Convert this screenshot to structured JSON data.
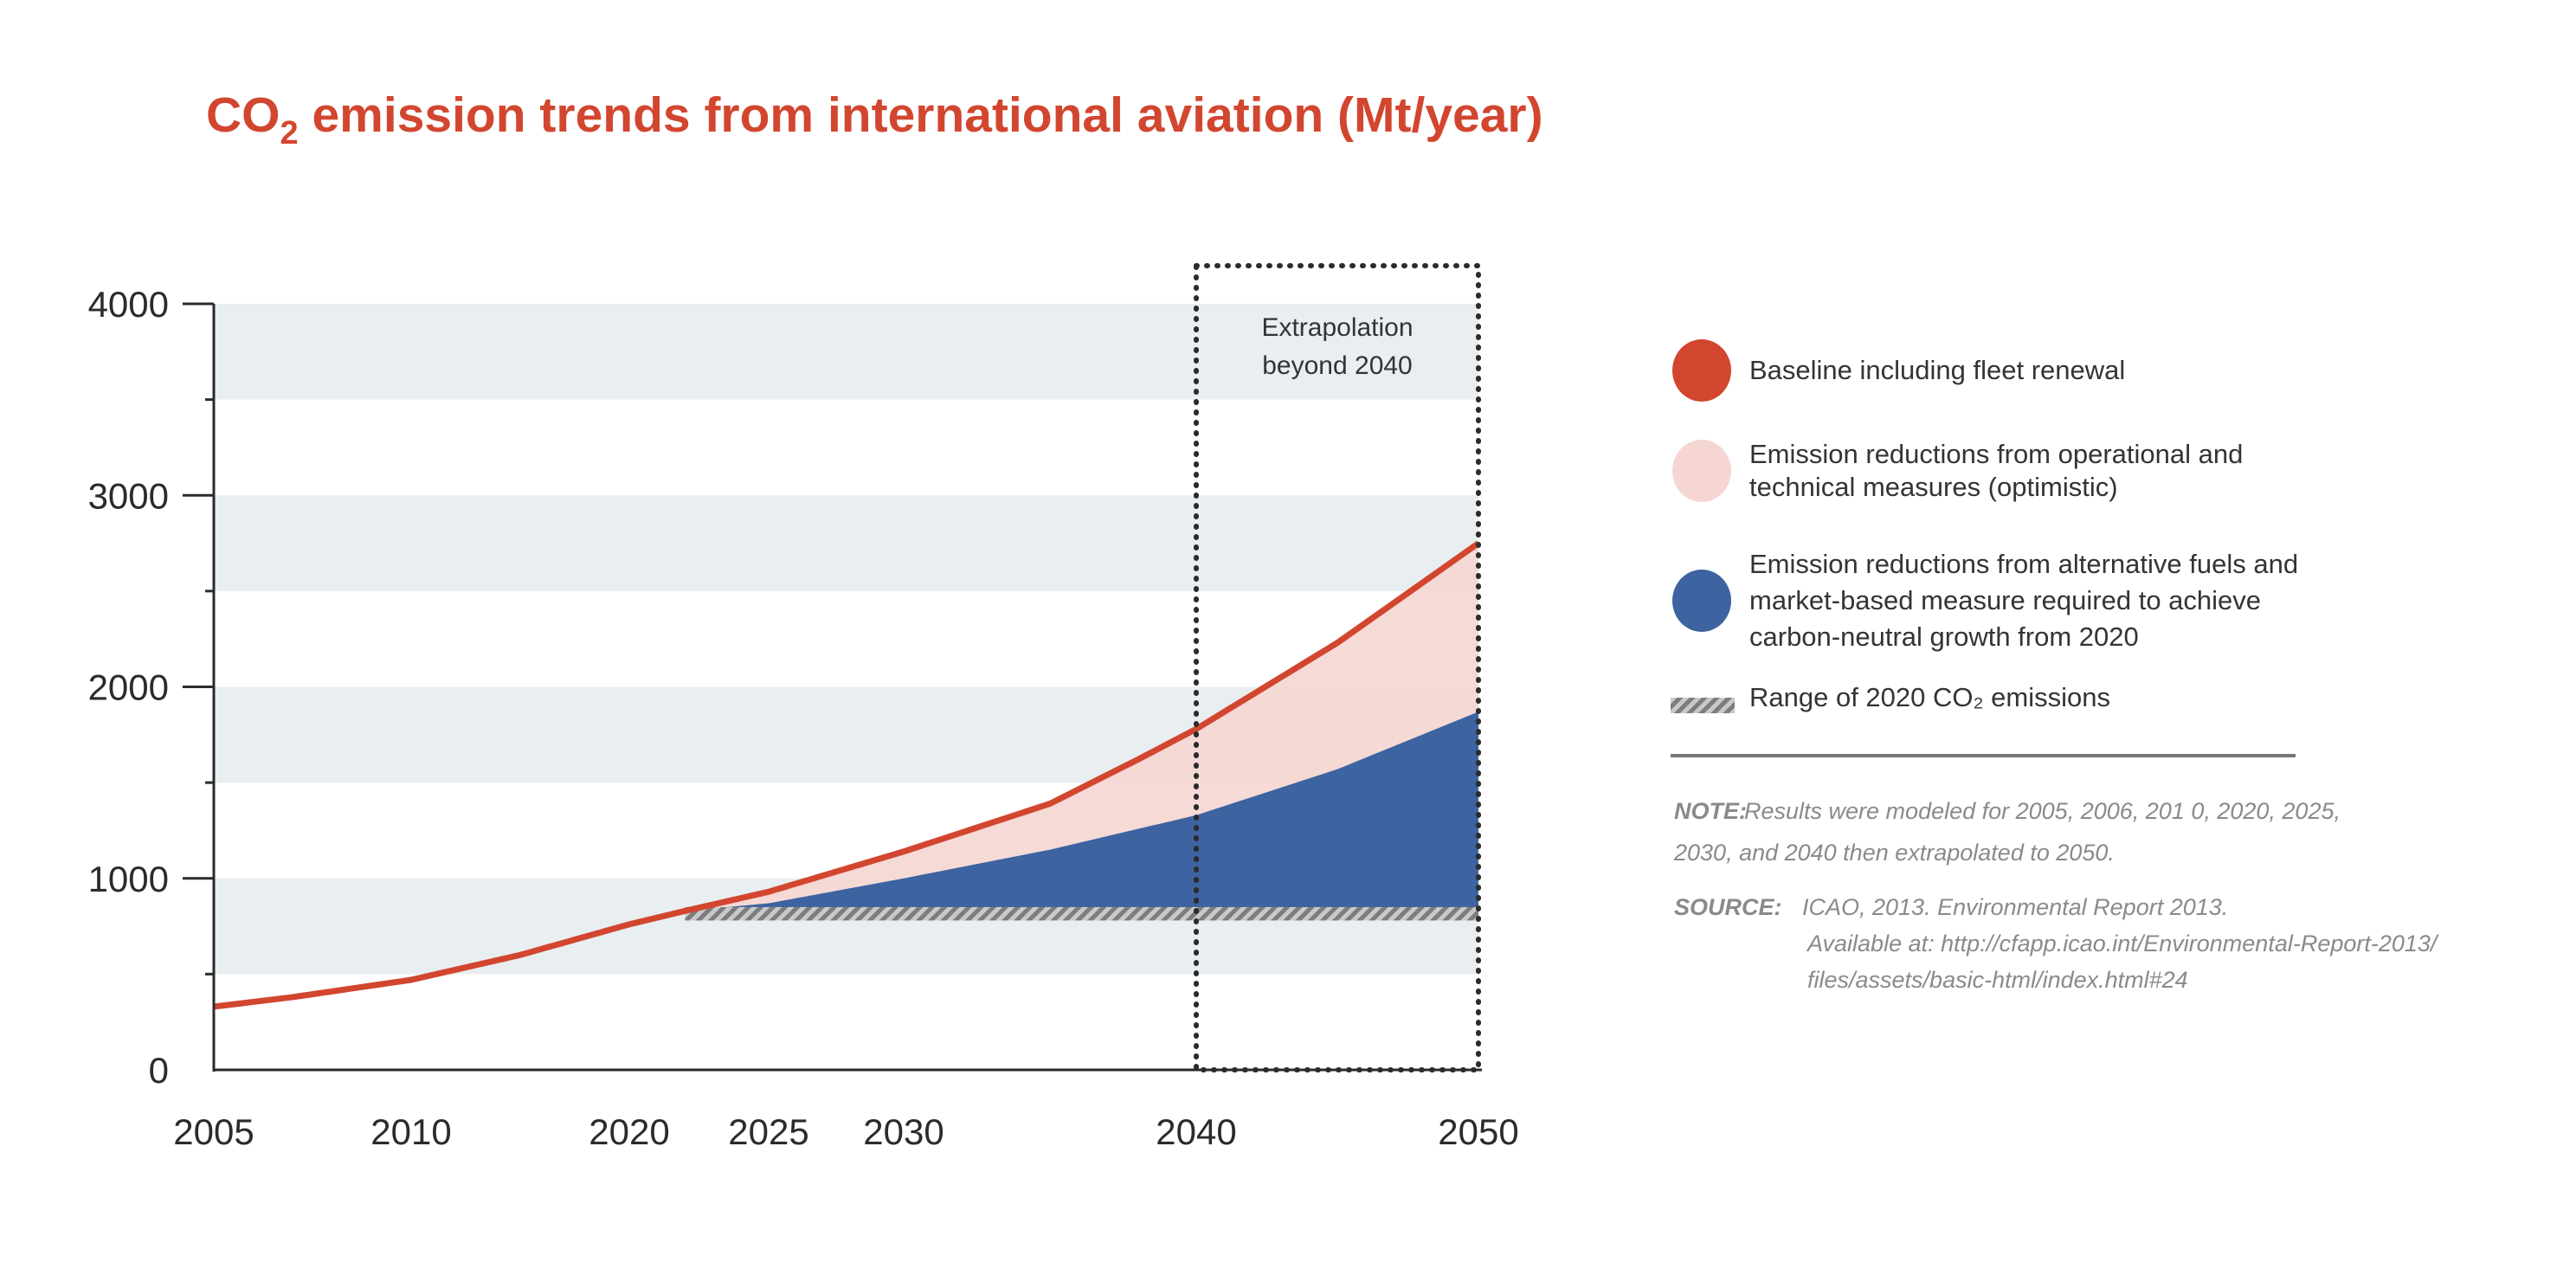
{
  "chart_data": {
    "type": "area",
    "title": "CO",
    "title_sub": "2",
    "title_rest": " emission trends from international aviation (Mt/year)",
    "xlabel": "",
    "ylabel": "",
    "ylim": [
      0,
      4000
    ],
    "y_ticks": [
      "0",
      "1000",
      "2000",
      "3000",
      "4000"
    ],
    "y_tick_values": [
      0,
      1000,
      2000,
      3000,
      4000
    ],
    "x_ticks": [
      "2005",
      "2010",
      "2020",
      "2025",
      "2030",
      "2040",
      "2050"
    ],
    "x_tick_values": [
      2005,
      2010,
      2020,
      2025,
      2030,
      2040,
      2050
    ],
    "grid_bands": [
      [
        500,
        1000
      ],
      [
        1500,
        2000
      ],
      [
        2500,
        3000
      ],
      [
        3500,
        4000
      ]
    ],
    "series": [
      {
        "name": "Baseline including fleet renewal",
        "type": "line",
        "x": [
          2005,
          2007,
          2010,
          2015,
          2020,
          2022,
          2025,
          2030,
          2035,
          2038,
          2040,
          2045,
          2050
        ],
        "values": [
          330,
          380,
          470,
          600,
          760,
          830,
          930,
          1140,
          1390,
          1620,
          1780,
          2230,
          2750
        ]
      },
      {
        "name": "Emission reductions from alternative fuels and market-based measure required to achieve carbon-neutral growth from 2020",
        "type": "area",
        "x": [
          2022,
          2025,
          2030,
          2035,
          2040,
          2045,
          2050
        ],
        "values": [
          830,
          870,
          1000,
          1150,
          1330,
          1570,
          1870
        ]
      },
      {
        "name": "Range of 2020 CO2 emissions",
        "type": "band",
        "x": [
          2022,
          2050
        ],
        "range": [
          780,
          850
        ]
      }
    ],
    "extrapolation_region": {
      "from": 2040,
      "to": 2050,
      "label_lines": [
        "Extrapolation",
        "beyond 2040"
      ]
    },
    "colors": {
      "baseline": "#d2462f",
      "optimistic": "#f5d6d2",
      "alt_fuels": "#3d63a0",
      "band": "#e9eef0",
      "hatch": "#8a8a8d"
    }
  },
  "legend": {
    "items": [
      {
        "lines": [
          "Baseline including fleet renewal"
        ],
        "color": "#d2462f"
      },
      {
        "lines": [
          "Emission reductions from operational and",
          "technical measures (optimistic)"
        ],
        "color": "#f5d6d2"
      },
      {
        "lines": [
          "Emission reductions from alternative fuels and",
          "market-based measure required to achieve",
          "carbon-neutral growth from 2020"
        ],
        "color": "#3d63a0"
      },
      {
        "lines": [
          "Range of 2020 CO₂  emissions"
        ],
        "color": "#8a8a8d"
      }
    ]
  },
  "note": {
    "label": "NOTE:",
    "lines": [
      "Results were modeled for 2005, 2006, 201 0, 2020, 2025,",
      "2030, and 2040 then extrapolated to 2050."
    ]
  },
  "source": {
    "label": "SOURCE:",
    "lines": [
      "ICAO, 2013. Environmental Report 2013.",
      "Available at: http://cfapp.icao.int/Environmental-Report-2013/",
      "files/assets/basic-html/index.html#24"
    ]
  }
}
